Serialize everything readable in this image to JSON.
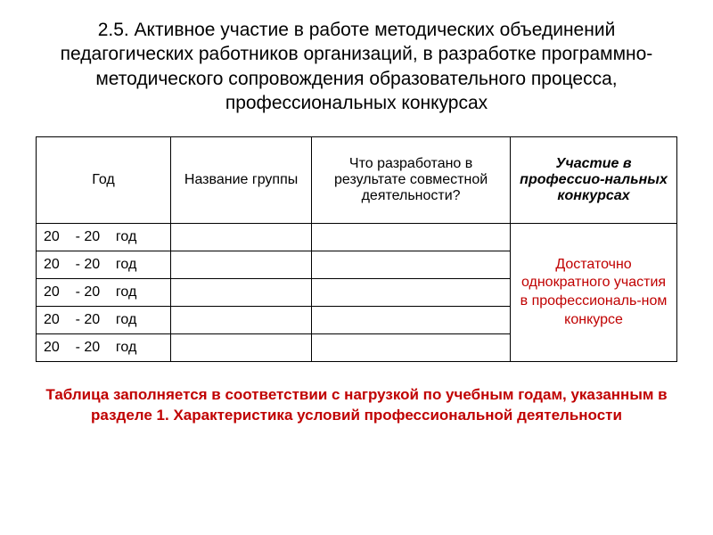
{
  "title": "2.5. Активное участие в работе методических объединений педагогических работников организаций, в разработке программно-методического сопровождения образовательного процесса, профессиональных конкурсах",
  "table": {
    "headers": {
      "year": "Год",
      "group": "Название группы",
      "result": "Что разработано в результате совместной деятельности?",
      "participation": "Участие в профессио-нальных конкурсах"
    },
    "year_cell": "20    - 20    год",
    "merged_note": "Достаточно однократного участия в профессиональ-ном конкурсе"
  },
  "footer": "Таблица заполняется в соответствии с нагрузкой по учебным годам, указанным в разделе 1. Характеристика условий профессиональной деятельности",
  "colors": {
    "text": "#000000",
    "accent": "#c00000",
    "border": "#000000",
    "background": "#ffffff"
  }
}
